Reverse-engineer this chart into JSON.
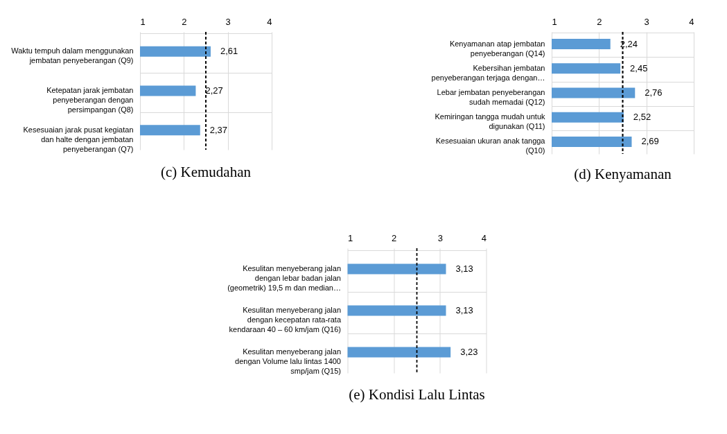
{
  "chart_data": [
    {
      "type": "bar",
      "orientation": "horizontal",
      "title": "(c) Kemudahan",
      "categories": [
        "Waktu tempuh dalam menggunakan jembatan penyeberangan (Q9)",
        "Ketepatan jarak jembatan penyeberangan dengan persimpangan (Q8)",
        "Kesesuaian jarak pusat kegiatan dan halte dengan jembatan penyeberangan (Q7)"
      ],
      "values": [
        2.61,
        2.27,
        2.37
      ],
      "value_labels": [
        "2,61",
        "2,27",
        "2,37"
      ],
      "color": "#5b9bd5",
      "xlim": [
        1,
        4
      ],
      "xticks": [
        1,
        2,
        3,
        4
      ],
      "grid": true,
      "ref_lines": [
        {
          "axis": "x",
          "value": 2.5,
          "color": "#000000",
          "line_style": "dashed"
        }
      ]
    },
    {
      "type": "bar",
      "orientation": "horizontal",
      "title": "(d) Kenyamanan",
      "categories": [
        "Kenyamanan atap jembatan penyeberangan (Q14)",
        "Kebersihan jembatan penyeberangan terjaga dengan…",
        "Lebar jembatan penyeberangan sudah memadai (Q12)",
        "Kemiringan tangga mudah untuk digunakan (Q11)",
        "Kesesuaian ukuran anak tangga (Q10)"
      ],
      "values": [
        2.24,
        2.45,
        2.76,
        2.52,
        2.69
      ],
      "value_labels": [
        "2,24",
        "2,45",
        "2,76",
        "2,52",
        "2,69"
      ],
      "color": "#5b9bd5",
      "xlim": [
        1,
        4
      ],
      "xticks": [
        1,
        2,
        3,
        4
      ],
      "grid": true,
      "ref_lines": [
        {
          "axis": "x",
          "value": 2.5,
          "color": "#000000",
          "line_style": "dashed"
        }
      ]
    },
    {
      "type": "bar",
      "orientation": "horizontal",
      "title": "(e) Kondisi Lalu Lintas",
      "categories": [
        "Kesulitan menyeberang jalan dengan lebar badan jalan (geometrik) 19,5 m dan median…",
        "Kesulitan menyeberang jalan dengan kecepatan rata-rata kendaraan 40 – 60 km/jam (Q16)",
        "Kesulitan menyeberang jalan dengan Volume lalu lintas 1400 smp/jam (Q15)"
      ],
      "values": [
        3.13,
        3.13,
        3.23
      ],
      "value_labels": [
        "3,13",
        "3,13",
        "3,23"
      ],
      "color": "#5b9bd5",
      "xlim": [
        1,
        4
      ],
      "xticks": [
        1,
        2,
        3,
        4
      ],
      "grid": true,
      "ref_lines": [
        {
          "axis": "x",
          "value": 2.5,
          "color": "#000000",
          "line_style": "dashed"
        }
      ]
    }
  ]
}
